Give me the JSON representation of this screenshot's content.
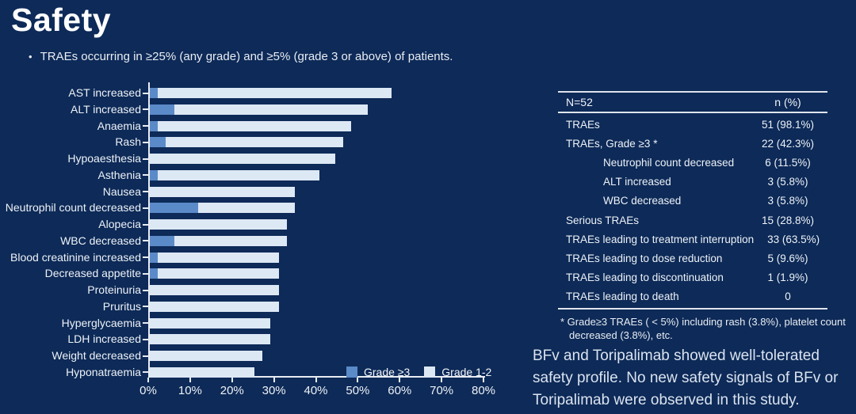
{
  "slide": {
    "title": "Safety",
    "bullet_marker": "•",
    "bullet": "TRAEs occurring in ≥25% (any grade) and ≥5% (grade 3 or above) of patients.",
    "conclusion": "BFv and Toripalimab showed well-tolerated safety profile. No new safety signals of BFv or Toripalimab were observed in this study.",
    "stray_mark": "."
  },
  "colors": {
    "background": "#0d2a58",
    "grade3_blue": "#5b8ac8",
    "grade12_lightblue": "#dde8f5",
    "axis_line": "#e8ecf2",
    "text": "#f2f4f8"
  },
  "chart_data": {
    "type": "bar",
    "orientation": "horizontal",
    "stacked": true,
    "categories": [
      "AST increased",
      "ALT increased",
      "Anaemia",
      "Rash",
      "Hypoaesthesia",
      "Asthenia",
      "Nausea",
      "Neutrophil count decreased",
      "Alopecia",
      "WBC decreased",
      "Blood creatinine increased",
      "Decreased appetite",
      "Proteinuria",
      "Pruritus",
      "Hyperglycaemia",
      "LDH increased",
      "Weight decreased",
      "Hyponatraemia"
    ],
    "series": [
      {
        "name": "Grade ≥3",
        "color": "#5b8ac8",
        "values": [
          1.9,
          5.8,
          1.9,
          3.8,
          0,
          1.9,
          0,
          11.5,
          0,
          5.8,
          1.9,
          1.9,
          0,
          0,
          0,
          0,
          0,
          0
        ]
      },
      {
        "name": "Grade 1-2",
        "color": "#dde8f5",
        "values": [
          55.8,
          46.1,
          46.2,
          42.4,
          44.2,
          38.5,
          34.6,
          23.1,
          32.7,
          26.9,
          28.9,
          28.9,
          30.8,
          30.8,
          28.8,
          28.8,
          26.9,
          25.0
        ]
      }
    ],
    "totals_any_grade_pct": [
      57.7,
      51.9,
      48.1,
      46.2,
      44.2,
      40.4,
      34.6,
      34.6,
      32.7,
      32.7,
      30.8,
      30.8,
      30.8,
      30.8,
      28.8,
      28.8,
      26.9,
      25.0
    ],
    "xlim": [
      0,
      80
    ],
    "x_ticks": [
      "0%",
      "10%",
      "20%",
      "30%",
      "40%",
      "50%",
      "60%",
      "70%",
      "80%"
    ],
    "grid": false,
    "legend_position": "inside-bottom-right"
  },
  "table": {
    "header": {
      "left": "N=52",
      "right": "n (%)"
    },
    "rows": [
      {
        "label": "TRAEs",
        "value": "51 (98.1%)",
        "indent": false
      },
      {
        "label": "TRAEs, Grade ≥3 *",
        "value": "22 (42.3%)",
        "indent": false
      },
      {
        "label": "Neutrophil count decreased",
        "value": "6 (11.5%)",
        "indent": true
      },
      {
        "label": "ALT increased",
        "value": "3 (5.8%)",
        "indent": true
      },
      {
        "label": "WBC decreased",
        "value": "3 (5.8%)",
        "indent": true
      },
      {
        "label": "Serious TRAEs",
        "value": "15 (28.8%)",
        "indent": false
      },
      {
        "label": "TRAEs leading to treatment interruption",
        "value": "33 (63.5%)",
        "indent": false
      },
      {
        "label": "TRAEs leading to dose reduction",
        "value": "5 (9.6%)",
        "indent": false
      },
      {
        "label": "TRAEs leading to discontinuation",
        "value": "1 (1.9%)",
        "indent": false
      },
      {
        "label": "TRAEs leading to death",
        "value": "0",
        "indent": false
      }
    ],
    "footnote": "* Grade≥3 TRAEs ( < 5%) including rash (3.8%), platelet count decreased (3.8%), etc."
  }
}
